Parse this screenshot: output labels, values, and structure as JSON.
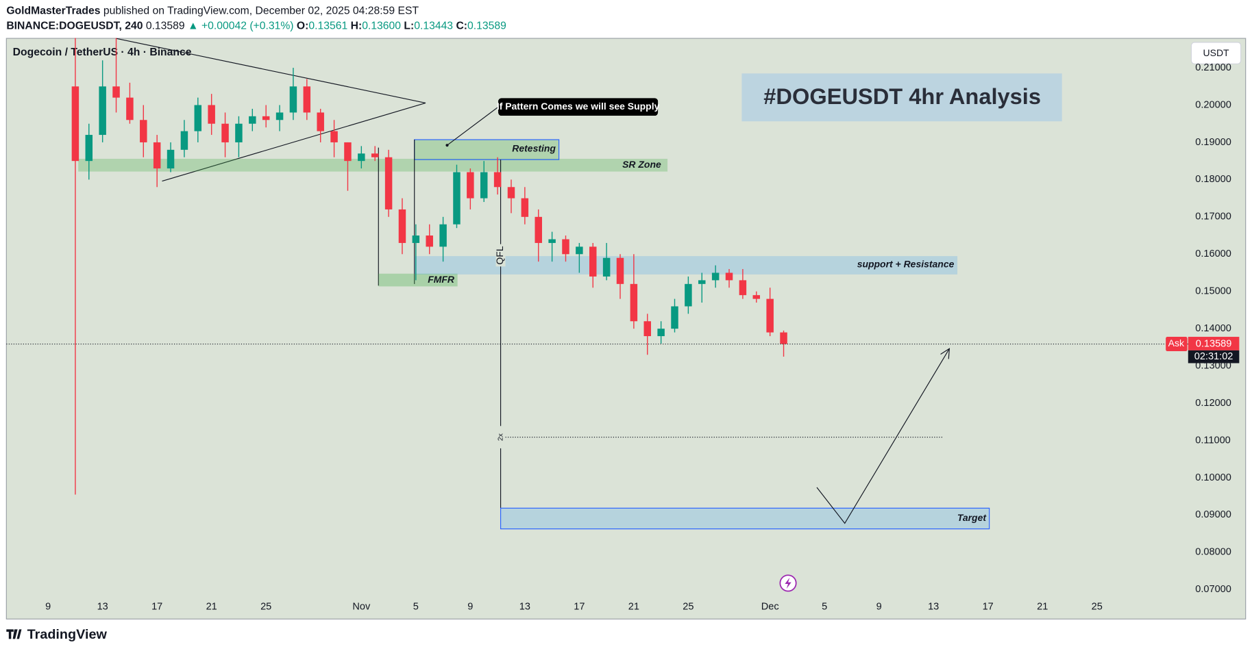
{
  "header": {
    "author": "GoldMasterTrades",
    "published": "published on TradingView.com, December 02, 2025 04:28:59 EST",
    "symbol": "BINANCE:DOGEUSDT, 240",
    "last": "0.13589",
    "change": "▲ +0.00042 (+0.31%)",
    "ohlc": [
      {
        "label": "O:",
        "value": "0.13561"
      },
      {
        "label": "H:",
        "value": "0.13600"
      },
      {
        "label": "L:",
        "value": "0.13443"
      },
      {
        "label": "C:",
        "value": "0.13589"
      }
    ]
  },
  "chart_data": {
    "type": "candlestick",
    "title": "#DOGEUSDT 4hr Analysis",
    "subtitle": "Dogecoin / TetherUS · 4h · Binance",
    "currency": "USDT",
    "up_color": "#089981",
    "down_color": "#f23645",
    "grid": false,
    "candles": {
      "x": [
        11,
        12,
        13,
        14,
        15,
        16,
        17,
        18,
        19,
        20,
        21,
        22,
        23,
        24,
        25,
        26,
        27,
        28,
        29,
        30,
        31,
        32,
        33,
        34,
        35,
        36,
        37,
        38,
        39,
        40,
        41,
        42,
        43,
        44,
        45,
        46,
        47,
        48,
        49,
        50,
        51,
        52,
        53,
        54,
        55,
        56,
        57,
        58,
        59,
        60,
        61,
        62,
        63
      ],
      "open": [
        0.205,
        0.185,
        0.192,
        0.205,
        0.202,
        0.196,
        0.19,
        0.183,
        0.188,
        0.193,
        0.2,
        0.195,
        0.19,
        0.195,
        0.197,
        0.196,
        0.198,
        0.205,
        0.198,
        0.193,
        0.19,
        0.185,
        0.187,
        0.186,
        0.172,
        0.163,
        0.165,
        0.162,
        0.168,
        0.182,
        0.175,
        0.182,
        0.178,
        0.175,
        0.17,
        0.163,
        0.164,
        0.16,
        0.162,
        0.154,
        0.159,
        0.152,
        0.142,
        0.138,
        0.14,
        0.146,
        0.152,
        0.153,
        0.155,
        0.153,
        0.149,
        0.148,
        0.139
      ],
      "high": [
        0.218,
        0.195,
        0.212,
        0.218,
        0.206,
        0.2,
        0.192,
        0.19,
        0.196,
        0.202,
        0.203,
        0.198,
        0.197,
        0.199,
        0.2,
        0.2,
        0.21,
        0.207,
        0.199,
        0.196,
        0.19,
        0.189,
        0.189,
        0.188,
        0.175,
        0.168,
        0.168,
        0.17,
        0.184,
        0.183,
        0.185,
        0.186,
        0.18,
        0.178,
        0.172,
        0.166,
        0.165,
        0.163,
        0.163,
        0.163,
        0.16,
        0.16,
        0.144,
        0.142,
        0.148,
        0.154,
        0.155,
        0.157,
        0.156,
        0.156,
        0.15,
        0.151,
        0.1395
      ],
      "low": [
        0.0955,
        0.18,
        0.19,
        0.198,
        0.195,
        0.186,
        0.178,
        0.182,
        0.186,
        0.19,
        0.192,
        0.186,
        0.186,
        0.193,
        0.194,
        0.193,
        0.196,
        0.196,
        0.19,
        0.186,
        0.177,
        0.183,
        0.185,
        0.17,
        0.16,
        0.153,
        0.16,
        0.158,
        0.167,
        0.172,
        0.174,
        0.176,
        0.171,
        0.168,
        0.158,
        0.158,
        0.158,
        0.155,
        0.151,
        0.153,
        0.148,
        0.14,
        0.133,
        0.136,
        0.139,
        0.144,
        0.147,
        0.151,
        0.151,
        0.148,
        0.147,
        0.138,
        0.1325
      ],
      "close": [
        0.185,
        0.192,
        0.205,
        0.202,
        0.196,
        0.19,
        0.183,
        0.188,
        0.193,
        0.2,
        0.195,
        0.19,
        0.195,
        0.197,
        0.196,
        0.198,
        0.205,
        0.198,
        0.193,
        0.19,
        0.185,
        0.187,
        0.186,
        0.172,
        0.163,
        0.165,
        0.162,
        0.168,
        0.182,
        0.175,
        0.182,
        0.178,
        0.175,
        0.17,
        0.163,
        0.164,
        0.16,
        0.162,
        0.154,
        0.159,
        0.152,
        0.142,
        0.138,
        0.14,
        0.146,
        0.152,
        0.153,
        0.155,
        0.153,
        0.149,
        0.148,
        0.139,
        0.13589
      ]
    },
    "xlim": [
      5.94,
      90.76
    ],
    "xticks": [
      9,
      13,
      17,
      21,
      25,
      {
        "value": 32,
        "label": "Nov"
      },
      {
        "value": 36,
        "label": "5"
      },
      {
        "value": 40,
        "label": "9"
      },
      {
        "value": 44,
        "label": "13"
      },
      {
        "value": 48,
        "label": "17"
      },
      {
        "value": 52,
        "label": "21"
      },
      {
        "value": 56,
        "label": "25"
      },
      {
        "value": 62,
        "label": "Dec"
      },
      {
        "value": 66,
        "label": "5"
      },
      {
        "value": 70,
        "label": "9"
      },
      {
        "value": 74,
        "label": "13"
      },
      {
        "value": 78,
        "label": "17"
      },
      {
        "value": 82,
        "label": "21"
      },
      {
        "value": 86,
        "label": "25"
      }
    ],
    "ylim": [
      0.0621,
      0.2179
    ],
    "yticks": [
      {
        "value": 0.07,
        "label": "0.07000"
      },
      {
        "value": 0.08,
        "label": "0.08000"
      },
      {
        "value": 0.09,
        "label": "0.09000"
      },
      {
        "value": 0.1,
        "label": "0.10000"
      },
      {
        "value": 0.11,
        "label": "0.11000"
      },
      {
        "value": 0.12,
        "label": "0.12000"
      },
      {
        "value": 0.13,
        "label": "0.13000"
      },
      {
        "value": 0.14,
        "label": "0.14000"
      },
      {
        "value": 0.15,
        "label": "0.15000"
      },
      {
        "value": 0.16,
        "label": "0.16000"
      },
      {
        "value": 0.17,
        "label": "0.17000"
      },
      {
        "value": 0.18,
        "label": "0.18000"
      },
      {
        "value": 0.19,
        "label": "0.19000"
      },
      {
        "value": 0.2,
        "label": "0.20000"
      },
      {
        "value": 0.21,
        "label": "0.21000"
      }
    ],
    "last_price": {
      "value": 0.13589,
      "label": "0.13589"
    },
    "ask_label": "Ask",
    "countdown": "02:31:02",
    "annotations": [
      "SR Zone",
      "Retesting",
      "FMFR",
      "support + Resistance",
      "QFL",
      "2x",
      "Target",
      "If Pattern Comes we will see Supply"
    ]
  },
  "footer": {
    "brand": "TradingView"
  }
}
